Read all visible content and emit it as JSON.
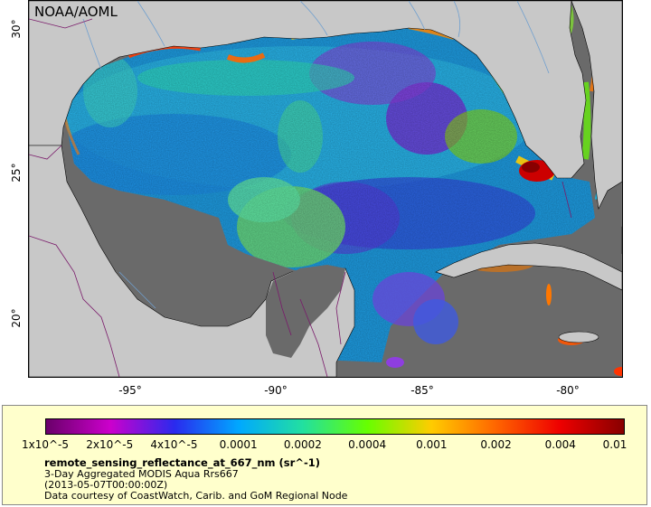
{
  "credit_label": "NOAA/AOML",
  "y_ticks": [
    {
      "label": "30°",
      "lat": 30
    },
    {
      "label": "25°",
      "lat": 25
    },
    {
      "label": "20°",
      "lat": 20
    }
  ],
  "x_ticks": [
    {
      "label": "-95°",
      "lon": -95
    },
    {
      "label": "-90°",
      "lon": -90
    },
    {
      "label": "-85°",
      "lon": -85
    },
    {
      "label": "-80°",
      "lon": -80
    }
  ],
  "map_extent": {
    "lon_min": -98.4,
    "lon_max": -78.2,
    "lat_min": 18.2,
    "lat_max": 30.9
  },
  "colors": {
    "land": "#c8c8c8",
    "no_data": "#6a6a6a",
    "coast_line": "#000000",
    "river_line": "#6f9fcf",
    "border_line": "#7a1a6a",
    "legend_bg": "#ffffcc"
  },
  "colorbar": {
    "stops": [
      "#6a006a",
      "#cc00cc",
      "#2a2aee",
      "#00a8ff",
      "#22e0a0",
      "#66ff00",
      "#ffcc00",
      "#ff6600",
      "#ee0000",
      "#880000"
    ],
    "labels": [
      "1x10^-5",
      "2x10^-5",
      "4x10^-5",
      "0.0001",
      "0.0002",
      "0.0004",
      "0.001",
      "0.002",
      "0.004",
      "0.01"
    ]
  },
  "legend": {
    "variable": "remote_sensing_reflectance_at_667_nm (sr^-1)",
    "dataset": "3-Day Aggregated MODIS Aqua Rrs667",
    "time": "(2013-05-07T00:00:00Z)",
    "courtesy": "Data courtesy of CoastWatch, Carib. and GoM Regional Node"
  }
}
